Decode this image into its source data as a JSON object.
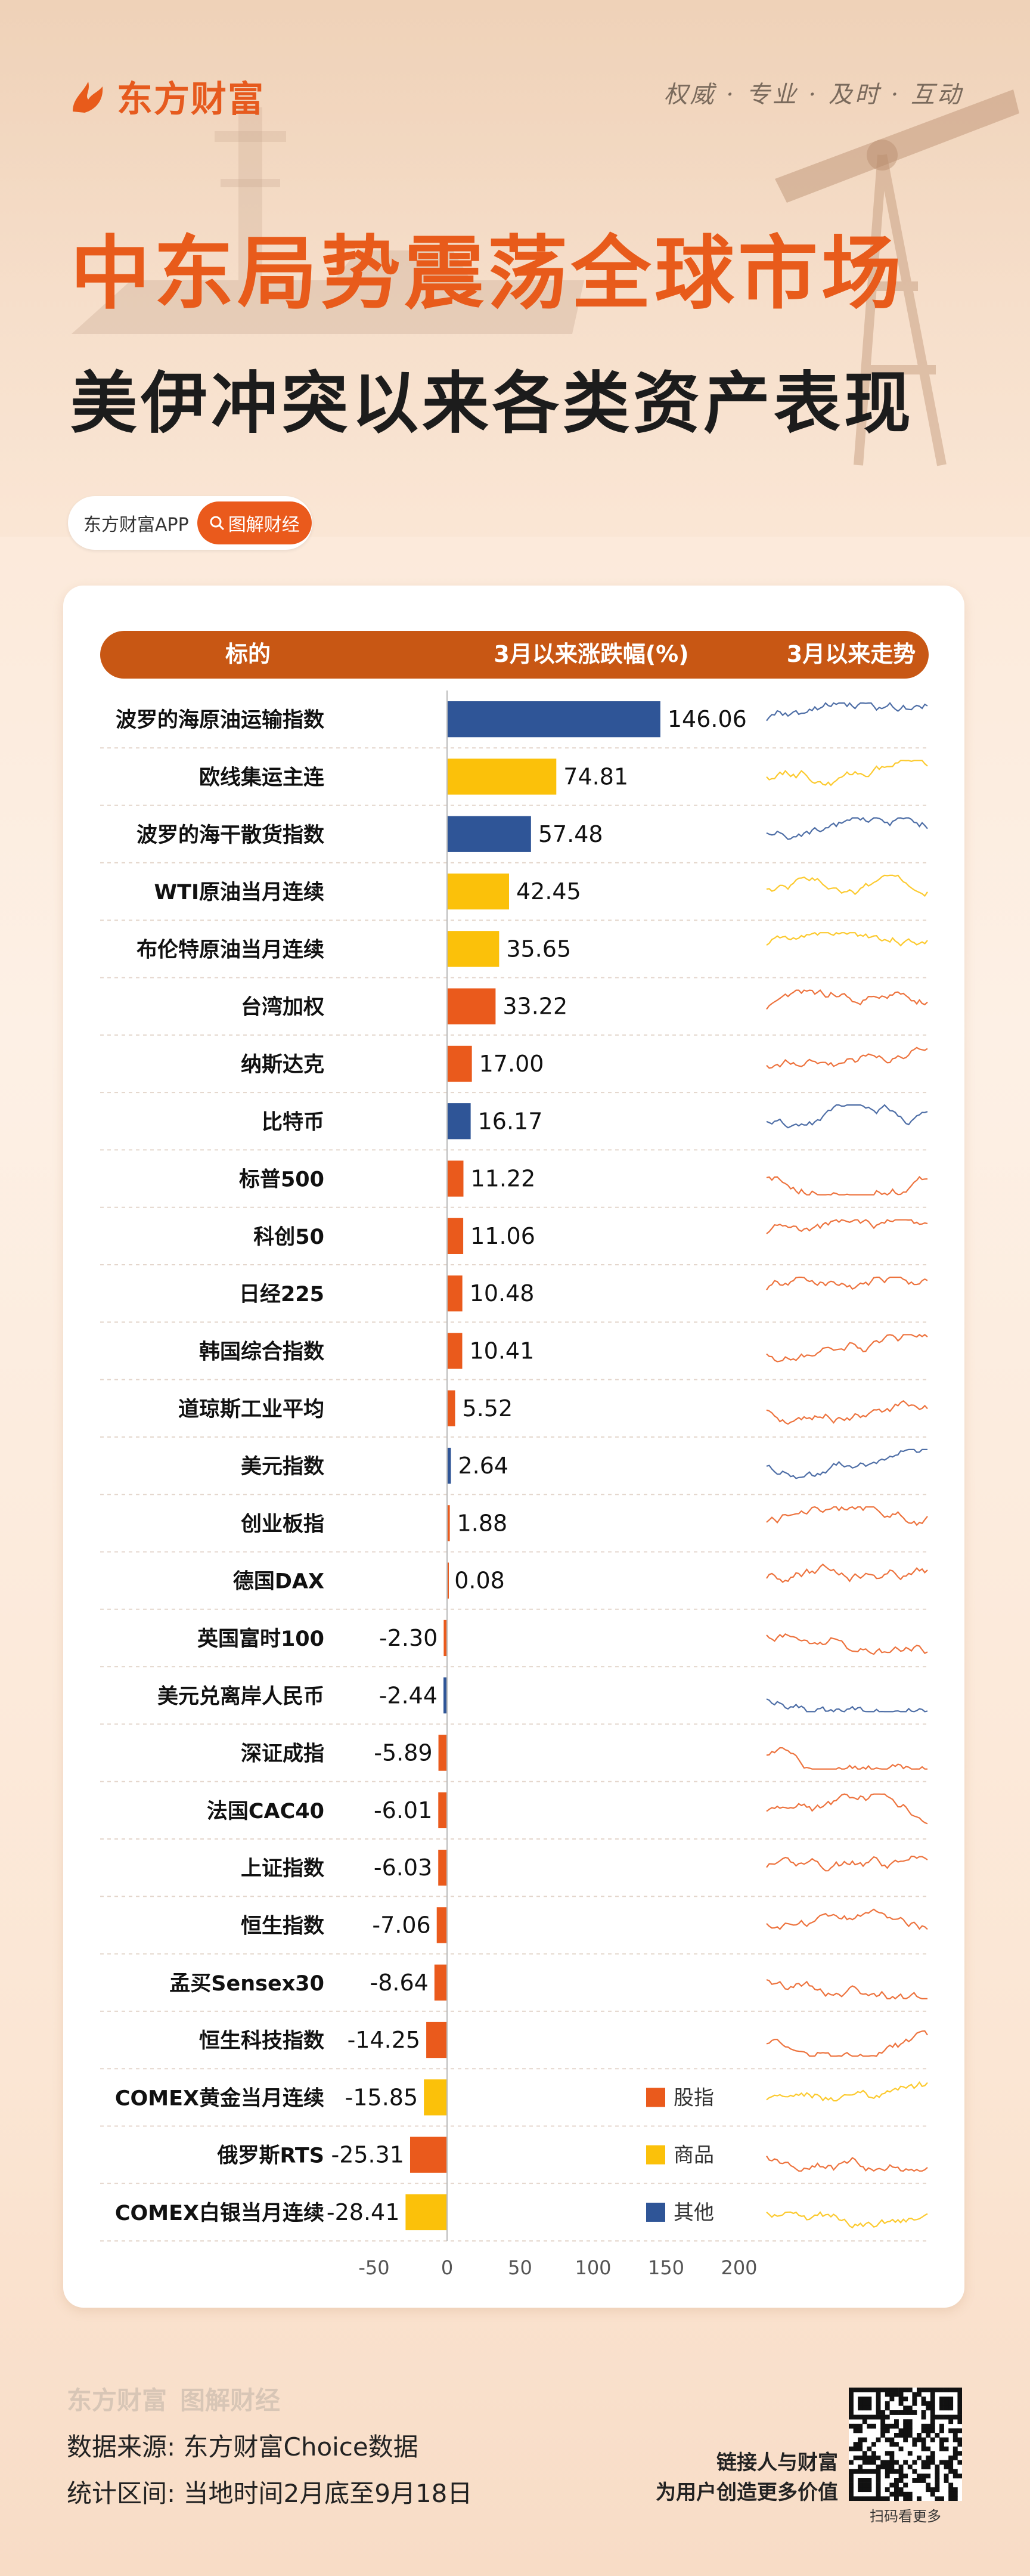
{
  "brand": {
    "name": "东方财富",
    "slogan": "权威 · 专业 · 及时 · 互动",
    "color": "#e85b1b"
  },
  "title": {
    "line1": "中东局势震荡全球市场",
    "line2": "美伊冲突以来各类资产表现"
  },
  "app": {
    "name": "东方财富APP",
    "tag": "图解财经"
  },
  "table": {
    "header": {
      "col1": "标的",
      "col2": "3月以来涨跌幅(%)",
      "col3": "3月以来走势"
    }
  },
  "chart_data": {
    "type": "bar",
    "orientation": "horizontal",
    "categories": [
      "波罗的海原油运输指数",
      "欧线集运主连",
      "波罗的海干散货指数",
      "WTI原油当月连续",
      "布伦特原油当月连续",
      "台湾加权",
      "纳斯达克",
      "比特币",
      "标普500",
      "科创50",
      "日经225",
      "韩国综合指数",
      "道琼斯工业平均",
      "美元指数",
      "创业板指",
      "德国DAX",
      "英国富时100",
      "美元兑离岸人民币",
      "深证成指",
      "法国CAC40",
      "上证指数",
      "恒生指数",
      "孟买Sensex30",
      "恒生科技指数",
      "COMEX黄金当月连续",
      "俄罗斯RTS",
      "COMEX白银当月连续"
    ],
    "values": [
      146.06,
      74.81,
      57.48,
      42.45,
      35.65,
      33.22,
      17.0,
      16.17,
      11.22,
      11.06,
      10.48,
      10.41,
      5.52,
      2.64,
      1.88,
      0.08,
      -2.3,
      -2.44,
      -5.89,
      -6.01,
      -6.03,
      -7.06,
      -8.64,
      -14.25,
      -15.85,
      -25.31,
      -28.41
    ],
    "labels": [
      "146.06",
      "74.81",
      "57.48",
      "42.45",
      "35.65",
      "33.22",
      "17.00",
      "16.17",
      "11.22",
      "11.06",
      "10.48",
      "10.41",
      "5.52",
      "2.64",
      "1.88",
      "0.08",
      "-2.30",
      "-2.44",
      "-5.89",
      "-6.01",
      "-6.03",
      "-7.06",
      "-8.64",
      "-14.25",
      "-15.85",
      "-25.31",
      "-28.41"
    ],
    "groups": [
      "其他",
      "商品",
      "其他",
      "商品",
      "商品",
      "股指",
      "股指",
      "其他",
      "股指",
      "股指",
      "股指",
      "股指",
      "股指",
      "其他",
      "股指",
      "股指",
      "股指",
      "其他",
      "股指",
      "股指",
      "股指",
      "股指",
      "股指",
      "股指",
      "商品",
      "股指",
      "商品"
    ],
    "legend": [
      {
        "name": "股指",
        "color": "#ea5a1c"
      },
      {
        "name": "商品",
        "color": "#fbc10a"
      },
      {
        "name": "其他",
        "color": "#2f5597"
      }
    ],
    "xlim": [
      -50,
      200
    ],
    "xticks": [
      -50,
      0,
      50,
      100,
      150,
      200
    ],
    "xtick_labels": [
      "-50",
      "0",
      "50",
      "100",
      "150",
      "200"
    ],
    "legend_position": "bottom-right"
  },
  "footer": {
    "brand": "东方财富",
    "brand_sub": "图解财经",
    "source": "数据来源: 东方财富Choice数据",
    "period": "统计区间: 当地时间2月底至9月18日",
    "tagline1": "链接人与财富",
    "tagline2": "为用户创造更多价值",
    "qr_caption": "扫码看更多"
  }
}
